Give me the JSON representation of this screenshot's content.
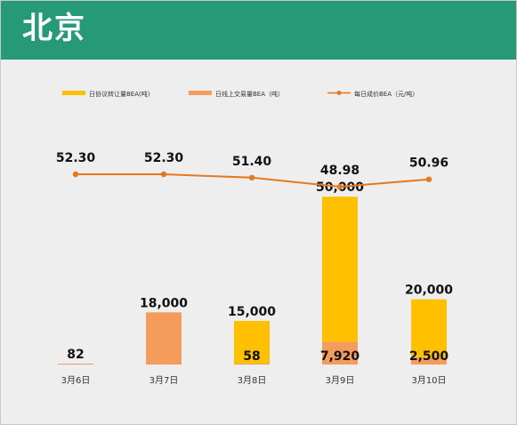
{
  "header": {
    "title": "北京"
  },
  "colors": {
    "header_bg": "#269a75",
    "agreement_bar": "#ffc000",
    "online_bar": "#f39c5b",
    "price_line": "#e5781e"
  },
  "chart_data": {
    "type": "bar",
    "categories": [
      "3月6日",
      "3月7日",
      "3月8日",
      "3月9日",
      "3月10日"
    ],
    "series": [
      {
        "name": "日协议转让量BEA(吨)",
        "type": "bar",
        "stack": "volume",
        "values": [
          0,
          0,
          15000,
          50000,
          20000
        ],
        "labels": [
          "",
          "",
          "15,000",
          "50,000",
          "20,000"
        ]
      },
      {
        "name": "日线上交易量BEA（吨）",
        "type": "bar",
        "stack": "volume",
        "values": [
          82,
          18000,
          58,
          7920,
          2500
        ],
        "labels": [
          "82",
          "18,000",
          "58",
          "7,920",
          "2,500"
        ]
      },
      {
        "name": "每日成价BEA（元/吨）",
        "type": "line",
        "values": [
          52.3,
          52.3,
          51.4,
          48.98,
          50.96
        ],
        "labels": [
          "52.30",
          "52.30",
          "51.40",
          "48.98",
          "50.96"
        ]
      }
    ],
    "legend": "top",
    "grid": false
  }
}
